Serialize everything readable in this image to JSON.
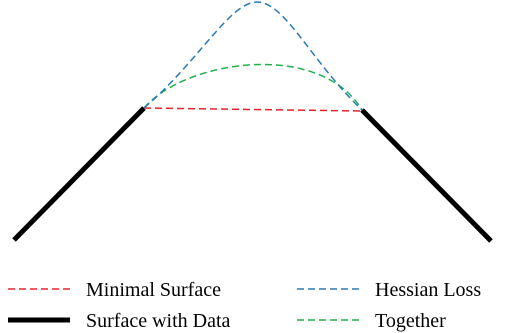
{
  "legend": {
    "items": [
      {
        "label": "Minimal Surface",
        "color": "#e8232b",
        "style": "dashed"
      },
      {
        "label": "Hessian Loss",
        "color": "#2a7ab8",
        "style": "dashed"
      },
      {
        "label": "Surface with Data",
        "color": "#000000",
        "style": "solid"
      },
      {
        "label": "Together",
        "color": "#22b04b",
        "style": "dashed"
      }
    ]
  }
}
